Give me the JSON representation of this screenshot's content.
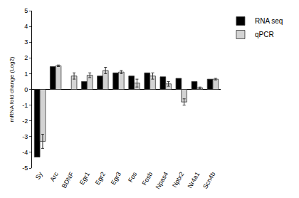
{
  "chart_data": {
    "type": "bar",
    "y_label": "mRNA fold change (Log2)",
    "categories": [
      "Sy",
      "Arc",
      "BDNF",
      "Egr1",
      "Egr2",
      "Egr3",
      "Fos",
      "Fosb",
      "Npas4",
      "Nptx2",
      "Nr4a1",
      "Scn4b"
    ],
    "series": [
      {
        "name": "RNA seq",
        "color": "#000000",
        "values": [
          -4.3,
          1.45,
          null,
          0.5,
          0.85,
          1.05,
          0.85,
          1.05,
          0.8,
          0.7,
          0.5,
          0.65
        ]
      },
      {
        "name": "qPCR",
        "color": "#d3d3d3",
        "values": [
          -3.3,
          1.5,
          0.85,
          0.9,
          1.2,
          1.1,
          0.4,
          0.85,
          0.35,
          -0.8,
          0.1,
          0.65
        ],
        "errors": [
          0.45,
          0.05,
          0.2,
          0.15,
          0.2,
          0.1,
          0.25,
          0.2,
          0.15,
          0.2,
          0.05,
          0.05
        ]
      }
    ],
    "ylim": [
      -5,
      5
    ],
    "yticks": [
      -5,
      -4,
      -3,
      -2,
      -1,
      0,
      1,
      2,
      3,
      4,
      5
    ],
    "grid": false,
    "legend": "top right"
  }
}
